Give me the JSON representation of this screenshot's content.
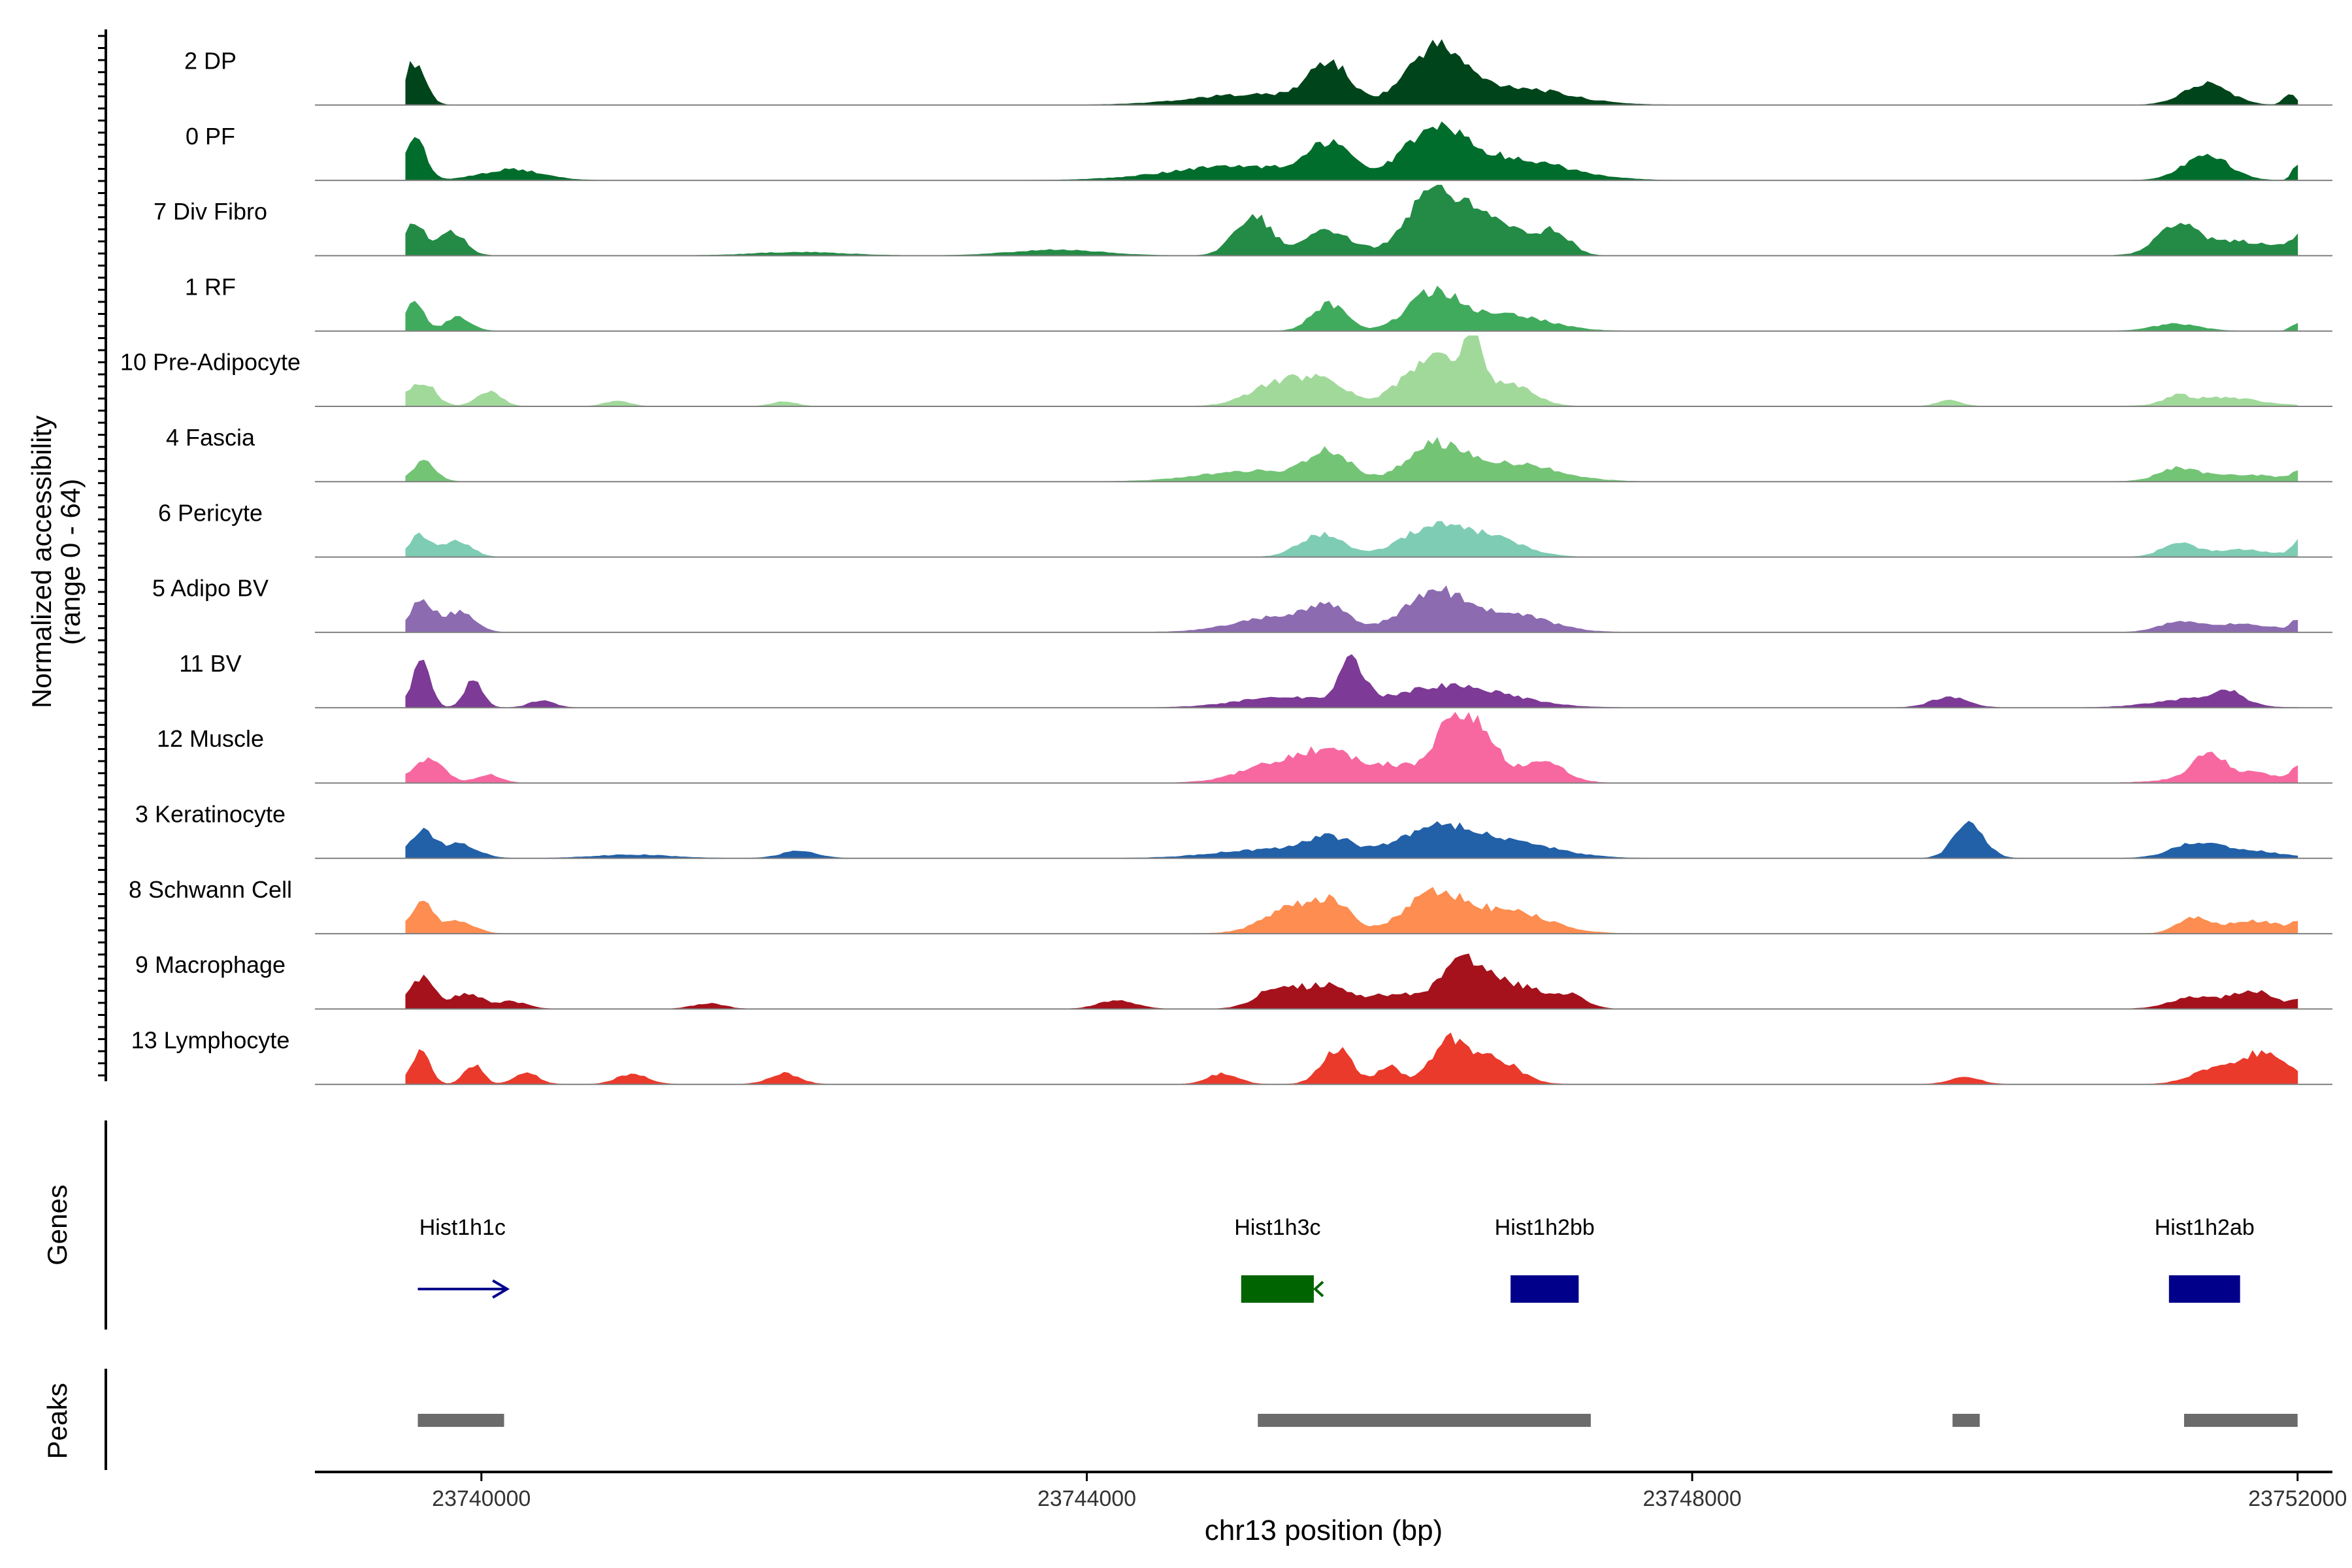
{
  "chart_data": {
    "type": "area",
    "region": "chr13",
    "x_range": [
      23738900,
      23752230
    ],
    "y_axis_label_line1": "Normalized accessibility",
    "y_axis_label_line2": "(range 0 - 64)",
    "x_axis_label": "chr13 position (bp)",
    "x_ticks": [
      {
        "value": 23740000,
        "label": "23740000"
      },
      {
        "value": 23744000,
        "label": "23744000"
      },
      {
        "value": 23748000,
        "label": "23748000"
      },
      {
        "value": 23752000,
        "label": "23752000"
      }
    ],
    "grid": false,
    "coverage_start": 23739500,
    "coverage_end": 23752000,
    "default_max_relative": 0.95,
    "tracks": [
      {
        "name": "2 DP",
        "color": "#00441b",
        "peaks": [
          [
            23739560,
            0.6,
            70
          ],
          [
            23745600,
            0.55,
            130
          ],
          [
            23745100,
            0.15,
            400
          ],
          [
            23746300,
            0.75,
            180
          ],
          [
            23746800,
            0.25,
            350
          ],
          [
            23751400,
            0.3,
            150
          ],
          [
            23751950,
            0.15,
            40
          ]
        ]
      },
      {
        "name": "0 PF",
        "color": "#006d2c",
        "peaks": [
          [
            23739560,
            0.62,
            70
          ],
          [
            23740200,
            0.15,
            200
          ],
          [
            23745600,
            0.45,
            140
          ],
          [
            23745000,
            0.2,
            450
          ],
          [
            23746300,
            0.65,
            200
          ],
          [
            23746800,
            0.3,
            350
          ],
          [
            23751400,
            0.35,
            150
          ],
          [
            23751990,
            0.2,
            30
          ]
        ]
      },
      {
        "name": "7 Div Fibro",
        "color": "#238b45",
        "peaks": [
          [
            23739560,
            0.45,
            60
          ],
          [
            23739800,
            0.35,
            90
          ],
          [
            23745100,
            0.55,
            120
          ],
          [
            23745600,
            0.35,
            150
          ],
          [
            23746300,
            0.9,
            180
          ],
          [
            23746700,
            0.45,
            200
          ],
          [
            23747100,
            0.3,
            100
          ],
          [
            23751200,
            0.4,
            120
          ],
          [
            23751600,
            0.2,
            300
          ],
          [
            23752000,
            0.2,
            50
          ],
          [
            23742100,
            0.05,
            300
          ],
          [
            23743800,
            0.08,
            300
          ]
        ]
      },
      {
        "name": "1 RF",
        "color": "#41ab5d",
        "peaks": [
          [
            23739560,
            0.45,
            60
          ],
          [
            23739850,
            0.2,
            80
          ],
          [
            23745600,
            0.38,
            110
          ],
          [
            23746300,
            0.55,
            170
          ],
          [
            23746800,
            0.22,
            250
          ],
          [
            23751200,
            0.1,
            150
          ],
          [
            23752000,
            0.12,
            40
          ]
        ]
      },
      {
        "name": "10 Pre-Adipocyte",
        "color": "#a1d99b",
        "peaks": [
          [
            23739600,
            0.35,
            90
          ],
          [
            23740050,
            0.2,
            80
          ],
          [
            23740900,
            0.08,
            80
          ],
          [
            23742000,
            0.07,
            80
          ],
          [
            23745300,
            0.35,
            200
          ],
          [
            23745600,
            0.25,
            140
          ],
          [
            23746300,
            0.7,
            200
          ],
          [
            23746550,
            0.8,
            60
          ],
          [
            23746800,
            0.3,
            150
          ],
          [
            23749700,
            0.08,
            80
          ],
          [
            23751200,
            0.1,
            80
          ],
          [
            23751500,
            0.12,
            250
          ]
        ]
      },
      {
        "name": "4 Fascia",
        "color": "#74c476",
        "peaks": [
          [
            23739620,
            0.28,
            80
          ],
          [
            23745600,
            0.38,
            140
          ],
          [
            23745100,
            0.15,
            350
          ],
          [
            23746300,
            0.48,
            180
          ],
          [
            23746800,
            0.25,
            300
          ],
          [
            23751200,
            0.15,
            120
          ],
          [
            23751600,
            0.1,
            300
          ],
          [
            23752000,
            0.1,
            40
          ]
        ]
      },
      {
        "name": "6 Pericyte",
        "color": "#7fccb4",
        "peaks": [
          [
            23739600,
            0.3,
            80
          ],
          [
            23739850,
            0.22,
            90
          ],
          [
            23745550,
            0.32,
            140
          ],
          [
            23746300,
            0.42,
            220
          ],
          [
            23746700,
            0.22,
            200
          ],
          [
            23751200,
            0.18,
            100
          ],
          [
            23751600,
            0.1,
            250
          ],
          [
            23752000,
            0.2,
            40
          ]
        ]
      },
      {
        "name": "5 Adipo BV",
        "color": "#8c6bb1",
        "peaks": [
          [
            23739600,
            0.42,
            80
          ],
          [
            23739850,
            0.28,
            100
          ],
          [
            23745300,
            0.22,
            300
          ],
          [
            23745600,
            0.28,
            120
          ],
          [
            23746300,
            0.55,
            200
          ],
          [
            23746800,
            0.25,
            250
          ],
          [
            23751200,
            0.12,
            120
          ],
          [
            23751600,
            0.12,
            250
          ],
          [
            23752000,
            0.15,
            40
          ]
        ]
      },
      {
        "name": "11 BV",
        "color": "#7d3a96",
        "peaks": [
          [
            23739600,
            0.62,
            60
          ],
          [
            23739950,
            0.4,
            60
          ],
          [
            23740400,
            0.1,
            80
          ],
          [
            23745300,
            0.15,
            300
          ],
          [
            23745750,
            0.62,
            80
          ],
          [
            23746300,
            0.25,
            300
          ],
          [
            23746700,
            0.12,
            300
          ],
          [
            23749700,
            0.15,
            120
          ],
          [
            23751300,
            0.12,
            250
          ],
          [
            23751550,
            0.16,
            100
          ]
        ]
      },
      {
        "name": "12 Muscle",
        "color": "#f768a1",
        "peaks": [
          [
            23739650,
            0.35,
            100
          ],
          [
            23740050,
            0.12,
            80
          ],
          [
            23745300,
            0.3,
            250
          ],
          [
            23745600,
            0.22,
            150
          ],
          [
            23746000,
            0.25,
            300
          ],
          [
            23746450,
            0.9,
            120
          ],
          [
            23746650,
            0.42,
            100
          ],
          [
            23747000,
            0.3,
            150
          ],
          [
            23751400,
            0.3,
            100
          ],
          [
            23751600,
            0.15,
            300
          ],
          [
            23752000,
            0.18,
            40
          ]
        ]
      },
      {
        "name": "3 Keratinocyte",
        "color": "#2260a8",
        "peaks": [
          [
            23739600,
            0.38,
            80
          ],
          [
            23739850,
            0.2,
            120
          ],
          [
            23741000,
            0.05,
            250
          ],
          [
            23742100,
            0.1,
            120
          ],
          [
            23745600,
            0.25,
            150
          ],
          [
            23745200,
            0.12,
            350
          ],
          [
            23746300,
            0.4,
            250
          ],
          [
            23746800,
            0.22,
            300
          ],
          [
            23749830,
            0.48,
            100
          ],
          [
            23751300,
            0.15,
            150
          ],
          [
            23751600,
            0.12,
            250
          ]
        ]
      },
      {
        "name": "8 Schwann Cell",
        "color": "#fd8d50",
        "peaks": [
          [
            23739600,
            0.42,
            80
          ],
          [
            23739850,
            0.18,
            100
          ],
          [
            23745400,
            0.4,
            200
          ],
          [
            23745650,
            0.3,
            100
          ],
          [
            23746300,
            0.55,
            200
          ],
          [
            23746800,
            0.3,
            250
          ],
          [
            23751300,
            0.2,
            100
          ],
          [
            23751700,
            0.18,
            200
          ],
          [
            23752000,
            0.12,
            40
          ]
        ]
      },
      {
        "name": "9 Macrophage",
        "color": "#a5121c",
        "peaks": [
          [
            23739600,
            0.45,
            80
          ],
          [
            23739900,
            0.22,
            100
          ],
          [
            23740200,
            0.1,
            100
          ],
          [
            23741500,
            0.08,
            100
          ],
          [
            23744200,
            0.12,
            120
          ],
          [
            23745300,
            0.35,
            150
          ],
          [
            23745600,
            0.25,
            100
          ],
          [
            23746000,
            0.2,
            250
          ],
          [
            23746500,
            0.6,
            150
          ],
          [
            23746850,
            0.3,
            200
          ],
          [
            23747200,
            0.15,
            100
          ],
          [
            23751300,
            0.15,
            150
          ],
          [
            23751700,
            0.25,
            150
          ],
          [
            23752000,
            0.1,
            40
          ]
        ]
      },
      {
        "name": "13 Lymphocyte",
        "color": "#ea3a2c",
        "peaks": [
          [
            23739600,
            0.5,
            60
          ],
          [
            23739950,
            0.28,
            60
          ],
          [
            23740300,
            0.15,
            80
          ],
          [
            23741000,
            0.15,
            100
          ],
          [
            23742000,
            0.15,
            100
          ],
          [
            23744900,
            0.15,
            100
          ],
          [
            23745650,
            0.5,
            100
          ],
          [
            23746000,
            0.25,
            80
          ],
          [
            23746400,
            0.6,
            120
          ],
          [
            23746700,
            0.35,
            150
          ],
          [
            23749800,
            0.1,
            100
          ],
          [
            23751450,
            0.22,
            150
          ],
          [
            23751750,
            0.4,
            120
          ],
          [
            23751950,
            0.2,
            80
          ]
        ]
      }
    ],
    "genes_label": "Genes",
    "genes": [
      {
        "name": "Hist1h1c",
        "start": 23739580,
        "end": 23740170,
        "strand": "+",
        "color": "#00008b",
        "type": "arrow"
      },
      {
        "name": "Hist1h3c",
        "start": 23745020,
        "end": 23745500,
        "strand": "-",
        "color": "#006400",
        "type": "box"
      },
      {
        "name": "Hist1h2bb",
        "start": 23746800,
        "end": 23747250,
        "strand": "+",
        "color": "#00008b",
        "type": "box"
      },
      {
        "name": "Hist1h2ab",
        "start": 23751150,
        "end": 23751620,
        "strand": "+",
        "color": "#00008b",
        "type": "box"
      }
    ],
    "peaks_label": "Peaks",
    "peaks_color": "#6b6b6b",
    "peak_regions": [
      [
        23739580,
        23740150
      ],
      [
        23745130,
        23747330
      ],
      [
        23749720,
        23749900
      ],
      [
        23751250,
        23752000
      ]
    ]
  }
}
